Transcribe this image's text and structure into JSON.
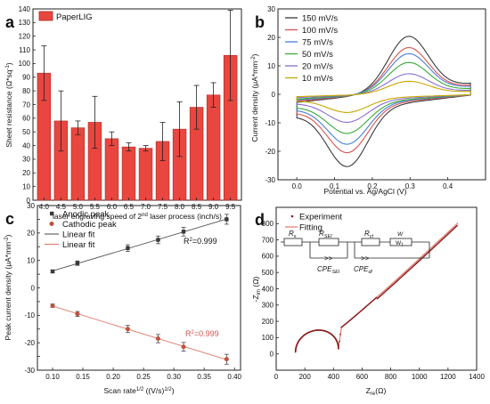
{
  "chart_data": [
    {
      "panel_label": "a",
      "type": "bar",
      "legend": [
        "PaperLIG"
      ],
      "xlabel": "laser engraving speed of 2",
      "xlabel_sup": "nd",
      "xlabel_tail": " laser process (inch/s)",
      "ylabel": "Sheet resistance (Ω*sq",
      "ylabel_sup": "-1",
      "ylabel_tail": ")",
      "categories": [
        "4.0",
        "4.5",
        "5.0",
        "5.5",
        "6.0",
        "6.5",
        "7.0",
        "7.5",
        "8.0",
        "8.5",
        "9.0",
        "9.5"
      ],
      "values": [
        93,
        58,
        53,
        57,
        45,
        39,
        38,
        43,
        52,
        68,
        77,
        106
      ],
      "errors": [
        20,
        22,
        5,
        19,
        5,
        3,
        2,
        14,
        20,
        16,
        9,
        33
      ],
      "ylim": [
        0,
        140
      ],
      "yticks": [
        0,
        10,
        20,
        30,
        40,
        50,
        60,
        70,
        80,
        90,
        100,
        110,
        120,
        130,
        140
      ],
      "colors": {
        "bar": "#e8463f",
        "bar_edge": "#b02824"
      }
    },
    {
      "panel_label": "b",
      "type": "line",
      "xlabel": "Potential vs. Ag/AgCl (V)",
      "ylabel": "Current density (μA*mm",
      "ylabel_sup": "-2",
      "ylabel_tail": ")",
      "xlim": [
        -0.05,
        0.5
      ],
      "ylim": [
        -30,
        30
      ],
      "xticks": [
        "0.0",
        "0.1",
        "0.2",
        "0.3",
        "0.4"
      ],
      "xtick_values": [
        0,
        0.1,
        0.2,
        0.3,
        0.4
      ],
      "yticks": [
        -30,
        -20,
        -10,
        0,
        10,
        20,
        30
      ],
      "series": [
        {
          "name": "150 mV/s",
          "color": "#3a3a3a",
          "peak_anodic": 23.5,
          "peak_cathodic": -26,
          "base_top": 9,
          "base_bot": -12
        },
        {
          "name": "100 mV/s",
          "color": "#d9534f",
          "peak_anodic": 19,
          "peak_cathodic": -21,
          "base_top": 7.5,
          "base_bot": -10
        },
        {
          "name": "75 mV/s",
          "color": "#4a7fd6",
          "peak_anodic": 16.5,
          "peak_cathodic": -18,
          "base_top": 6.5,
          "base_bot": -8.5
        },
        {
          "name": "50 mV/s",
          "color": "#3aaa3a",
          "peak_anodic": 13,
          "peak_cathodic": -14,
          "base_top": 5,
          "base_bot": -7
        },
        {
          "name": "20 mV/s",
          "color": "#8a6fd0",
          "peak_anodic": 8.5,
          "peak_cathodic": -10,
          "base_top": 3.5,
          "base_bot": -5
        },
        {
          "name": "10 mV/s",
          "color": "#c9a800",
          "peak_anodic": 5.5,
          "peak_cathodic": -6.5,
          "base_top": 2.5,
          "base_bot": -3.5
        }
      ]
    },
    {
      "panel_label": "c",
      "type": "scatter",
      "xlabel": "Scan rate",
      "xlabel_sup": "1/2",
      "xlabel_tail": " ((V/s)",
      "xlabel_sup2": "1/2",
      "xlabel_tail2": ")",
      "ylabel": "Peak current density (μA*mm",
      "ylabel_sup": "-2",
      "ylabel_tail": ")",
      "xlim": [
        0.075,
        0.41
      ],
      "ylim": [
        -30,
        30
      ],
      "xticks": [
        "0.10",
        "0.15",
        "0.20",
        "0.25",
        "0.30",
        "0.35",
        "0.40"
      ],
      "xtick_values": [
        0.1,
        0.15,
        0.2,
        0.25,
        0.3,
        0.35,
        0.4
      ],
      "yticks": [
        -30,
        -25,
        -20,
        -15,
        -10,
        -5,
        0,
        5,
        10,
        15,
        20,
        25,
        30
      ],
      "x": [
        0.1,
        0.141,
        0.224,
        0.274,
        0.316,
        0.387
      ],
      "series": [
        {
          "name": "Anodic peak",
          "color": "#3a3a3a",
          "y": [
            6,
            9,
            14.5,
            17.5,
            20.5,
            25
          ],
          "err": [
            0.5,
            0.8,
            1.2,
            1.4,
            1.6,
            1.8
          ]
        },
        {
          "name": "Cathodic peak",
          "color": "#c0503d",
          "y": [
            -6.5,
            -9.5,
            -15,
            -18.5,
            -21.5,
            -26
          ],
          "err": [
            0.6,
            0.9,
            1.3,
            1.5,
            1.6,
            1.8
          ]
        }
      ],
      "fits": [
        {
          "name": "Linear fit",
          "color": "#555555",
          "r2": "R",
          "r2_sup": "2",
          "r2_val": "=0.999",
          "r2_color": "#111111"
        },
        {
          "name": "Linear fit",
          "color": "#e0786a",
          "r2": "R",
          "r2_sup": "2",
          "r2_val": "=0.999",
          "r2_color": "#d9534f"
        }
      ]
    },
    {
      "panel_label": "d",
      "type": "scatter",
      "xlabel": "Z",
      "xlabel_sub": "re",
      "xlabel_tail": "(Ω)",
      "ylabel": "-Z",
      "ylabel_sub": "im",
      "ylabel_tail": " (Ω)",
      "xlim": [
        0,
        1400
      ],
      "ylim": [
        -100,
        900
      ],
      "xticks": [
        0,
        200,
        400,
        600,
        800,
        1000,
        1200,
        1400
      ],
      "yticks": [
        0,
        100,
        200,
        300,
        400,
        500,
        600,
        700,
        800
      ],
      "series": [
        {
          "name": "Experiment",
          "color": "#8b1a1a"
        },
        {
          "name": "Fitting",
          "color": "#e0786a"
        }
      ],
      "circuit_labels": {
        "rs": "R",
        "rs_sub": "s",
        "rsei": "R",
        "rsei_sub": "SEI",
        "rct": "R",
        "rct_sub": "ct",
        "w": "W",
        "w_sub": "1",
        "cpesei": "CPE",
        "cpesei_sub": "SEI",
        "cpedl": "CPE",
        "cpedl_sub": "dl"
      }
    }
  ]
}
